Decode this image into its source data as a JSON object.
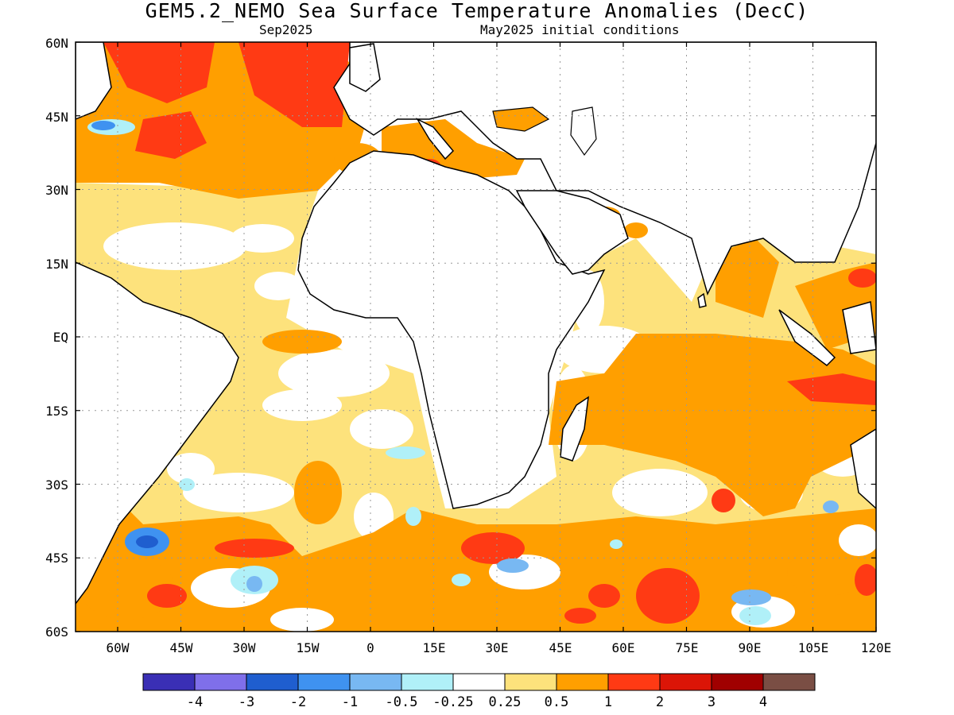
{
  "title": "GEM5.2_NEMO Sea Surface Temperature Anomalies (DecC)",
  "subtitle_left": "Sep2025",
  "subtitle_right": "May2025 initial conditions",
  "lat_labels": [
    "60N",
    "45N",
    "30N",
    "15N",
    "EQ",
    "15S",
    "30S",
    "45S",
    "60S"
  ],
  "lon_labels": [
    "60W",
    "45W",
    "30W",
    "15W",
    "0",
    "15E",
    "30E",
    "45E",
    "60E",
    "75E",
    "90E",
    "105E",
    "120E"
  ],
  "map_extent": {
    "lon_min": -70,
    "lon_max": 120,
    "lat_min": -60,
    "lat_max": 60
  },
  "grid": true,
  "colorbar": {
    "colors": [
      "#3a2fb5",
      "#7f6fea",
      "#1f5ecf",
      "#3f92f0",
      "#78b8f2",
      "#b0f0f8",
      "#ffffff",
      "#fde27c",
      "#ff9f00",
      "#ff3a14",
      "#db1507",
      "#a00000",
      "#7a4e44"
    ],
    "labels": [
      "-4",
      "-3",
      "-2",
      "-1",
      "-0.5",
      "-0.25",
      "0.25",
      "0.5",
      "1",
      "2",
      "3",
      "4"
    ]
  },
  "anomaly_colors": {
    "light": "#fde27c",
    "orange": "#ff9f00",
    "red": "#ff3a14",
    "darkred": "#db1507",
    "lightblue": "#b0f0f8",
    "blue": "#78b8f2",
    "deepblue": "#3f92f0"
  }
}
